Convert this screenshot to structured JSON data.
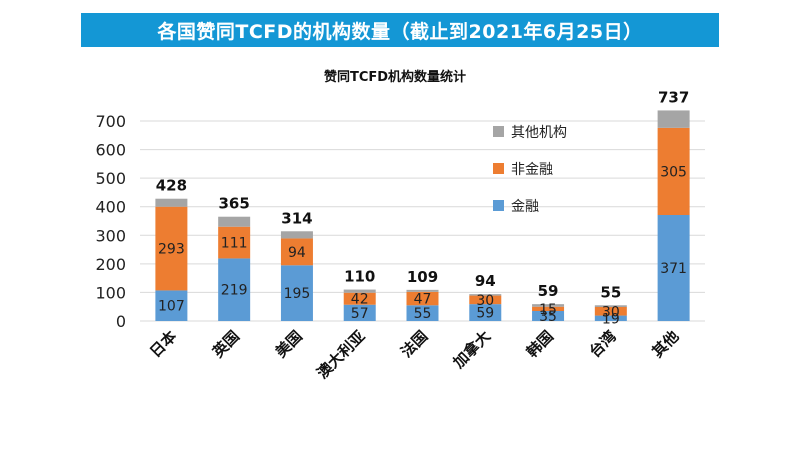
{
  "banner": {
    "title": "各国赞同TCFD的机构数量（截止到2021年6月25日）"
  },
  "colors": {
    "banner": "#1497d5",
    "finance": "#5b9bd5",
    "nonfinance": "#ed7d31",
    "other": "#a5a5a5",
    "grid": "#d9d9d9"
  },
  "chart_data": {
    "type": "bar",
    "stacked": true,
    "title": "赞同TCFD机构数量统计",
    "categories": [
      "日本",
      "英国",
      "美国",
      "澳大利亚",
      "法国",
      "加拿大",
      "韩国",
      "台湾",
      "其他"
    ],
    "series": [
      {
        "name": "金融",
        "values": [
          107,
          219,
          195,
          57,
          55,
          59,
          35,
          19,
          371
        ],
        "color": "#5b9bd5"
      },
      {
        "name": "非金融",
        "values": [
          293,
          111,
          94,
          42,
          47,
          30,
          15,
          30,
          305
        ],
        "color": "#ed7d31"
      },
      {
        "name": "其他机构",
        "values": [
          28,
          35,
          25,
          11,
          7,
          5,
          9,
          6,
          61
        ],
        "color": "#a5a5a5"
      }
    ],
    "totals": [
      428,
      365,
      314,
      110,
      109,
      94,
      59,
      55,
      737
    ],
    "ylim": [
      0,
      700
    ],
    "yticks": [
      0,
      100,
      200,
      300,
      400,
      500,
      600,
      700
    ],
    "grid": true,
    "legend_position": "top-right",
    "legend_order": [
      "其他机构",
      "非金融",
      "金融"
    ]
  }
}
